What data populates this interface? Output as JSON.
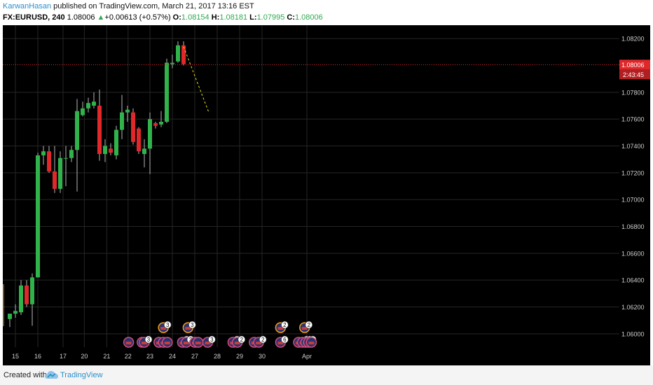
{
  "header": {
    "author": "KarwanHasan",
    "published": "published on TradingView.com, March 21, 2017 13:16 EST",
    "symbol": "FX:EURUSD, 240",
    "last": "1.08006",
    "change_arrow": "▲",
    "change": "+0.00613 (+0.57%)",
    "o_label": "O:",
    "o_value": "1.08154",
    "h_label": "H:",
    "h_value": "1.08181",
    "l_label": "L:",
    "l_value": "1.07995",
    "c_label": "C:",
    "c_value": "1.08006"
  },
  "footer": {
    "created_with": "Created with",
    "brand": "TradingView"
  },
  "colors": {
    "background": "#000000",
    "up": "#2fb34a",
    "down": "#e0282b",
    "grid": "#262626",
    "price_line": "#e0282b",
    "trend_line": "#e8e51c",
    "event_ring": "#ffffff",
    "event_ring_alt": "#f0a020"
  },
  "chart_data": {
    "type": "candlestick",
    "ylim": [
      1.059,
      1.083
    ],
    "y_ticks": [
      "1.08200",
      "1.07800",
      "1.07600",
      "1.07400",
      "1.07200",
      "1.07000",
      "1.06800",
      "1.06600",
      "1.06400",
      "1.06200",
      "1.06000"
    ],
    "x_ticks": [
      "15",
      "16",
      "17",
      "20",
      "21",
      "22",
      "23",
      "24",
      "27",
      "28",
      "29",
      "30",
      "Apr"
    ],
    "x_tick_slots": [
      1,
      5,
      9.5,
      13.3,
      17.3,
      21.1,
      25,
      29,
      33,
      37,
      41,
      45,
      53
    ],
    "current_price": {
      "label": "1.08006",
      "value": 1.08006,
      "countdown": "2:43:45"
    },
    "candles": [
      {
        "o": 1.0611,
        "h": 1.0615,
        "l": 1.0605,
        "c": 1.0615
      },
      {
        "o": 1.0615,
        "h": 1.0622,
        "l": 1.0612,
        "c": 1.0617
      },
      {
        "o": 1.0616,
        "h": 1.064,
        "l": 1.0614,
        "c": 1.0636
      },
      {
        "o": 1.0636,
        "h": 1.064,
        "l": 1.062,
        "c": 1.0622
      },
      {
        "o": 1.0622,
        "h": 1.0645,
        "l": 1.0606,
        "c": 1.0642
      },
      {
        "o": 1.0642,
        "h": 1.0735,
        "l": 1.0642,
        "c": 1.0733
      },
      {
        "o": 1.0733,
        "h": 1.074,
        "l": 1.0726,
        "c": 1.0736
      },
      {
        "o": 1.0736,
        "h": 1.074,
        "l": 1.072,
        "c": 1.0721
      },
      {
        "o": 1.0721,
        "h": 1.074,
        "l": 1.0705,
        "c": 1.0708
      },
      {
        "o": 1.0708,
        "h": 1.0736,
        "l": 1.0705,
        "c": 1.0731
      },
      {
        "o": 1.0731,
        "h": 1.074,
        "l": 1.071,
        "c": 1.0731
      },
      {
        "o": 1.0731,
        "h": 1.074,
        "l": 1.0728,
        "c": 1.0737
      },
      {
        "o": 1.0737,
        "h": 1.0775,
        "l": 1.0706,
        "c": 1.0766
      },
      {
        "o": 1.0763,
        "h": 1.0773,
        "l": 1.0762,
        "c": 1.0768
      },
      {
        "o": 1.0768,
        "h": 1.0776,
        "l": 1.0765,
        "c": 1.0772
      },
      {
        "o": 1.077,
        "h": 1.078,
        "l": 1.0768,
        "c": 1.0773
      },
      {
        "o": 1.077,
        "h": 1.0782,
        "l": 1.0729,
        "c": 1.0734
      },
      {
        "o": 1.0734,
        "h": 1.0745,
        "l": 1.0728,
        "c": 1.074
      },
      {
        "o": 1.0738,
        "h": 1.0742,
        "l": 1.0733,
        "c": 1.0735
      },
      {
        "o": 1.0733,
        "h": 1.0755,
        "l": 1.073,
        "c": 1.0752
      },
      {
        "o": 1.0752,
        "h": 1.0778,
        "l": 1.0745,
        "c": 1.0765
      },
      {
        "o": 1.0765,
        "h": 1.077,
        "l": 1.0758,
        "c": 1.0767
      },
      {
        "o": 1.0765,
        "h": 1.0768,
        "l": 1.0741,
        "c": 1.0743
      },
      {
        "o": 1.0753,
        "h": 1.0754,
        "l": 1.0734,
        "c": 1.0736
      },
      {
        "o": 1.0734,
        "h": 1.0745,
        "l": 1.0724,
        "c": 1.0738
      },
      {
        "o": 1.0738,
        "h": 1.0765,
        "l": 1.0719,
        "c": 1.076
      },
      {
        "o": 1.0757,
        "h": 1.0758,
        "l": 1.0753,
        "c": 1.0755
      },
      {
        "o": 1.0756,
        "h": 1.0766,
        "l": 1.0754,
        "c": 1.0758
      },
      {
        "o": 1.0758,
        "h": 1.0805,
        "l": 1.0757,
        "c": 1.0802
      },
      {
        "o": 1.0801,
        "h": 1.0808,
        "l": 1.0798,
        "c": 1.0802
      },
      {
        "o": 1.0803,
        "h": 1.0818,
        "l": 1.0802,
        "c": 1.0815
      },
      {
        "o": 1.0815,
        "h": 1.0818,
        "l": 1.08,
        "c": 1.0801
      }
    ],
    "trend_line": {
      "from": {
        "slot": 31,
        "y": 1.0814
      },
      "to": {
        "slot": 35.5,
        "y": 1.0765
      }
    },
    "events": [
      {
        "slot": 21.2,
        "row": 0,
        "badge": ""
      },
      {
        "slot": 23.6,
        "row": 0,
        "badge": ""
      },
      {
        "slot": 24.0,
        "row": 0,
        "badge": "3"
      },
      {
        "slot": 26.6,
        "row": 0,
        "badge": ""
      },
      {
        "slot": 27.4,
        "row": 0,
        "badge": ""
      },
      {
        "slot": 28.1,
        "row": 0,
        "badge": ""
      },
      {
        "slot": 27.4,
        "row": 1,
        "badge": "3"
      },
      {
        "slot": 30.8,
        "row": 0,
        "badge": "4"
      },
      {
        "slot": 31.5,
        "row": 0,
        "badge": "2"
      },
      {
        "slot": 31.8,
        "row": 1,
        "badge": "3"
      },
      {
        "slot": 33.0,
        "row": 0,
        "badge": ""
      },
      {
        "slot": 33.6,
        "row": 0,
        "badge": ""
      },
      {
        "slot": 35.3,
        "row": 0,
        "badge": "3"
      },
      {
        "slot": 39.8,
        "row": 0,
        "badge": "2"
      },
      {
        "slot": 40.6,
        "row": 0,
        "badge": "2"
      },
      {
        "slot": 43.6,
        "row": 0,
        "badge": ""
      },
      {
        "slot": 44.4,
        "row": 0,
        "badge": "2"
      },
      {
        "slot": 48.3,
        "row": 0,
        "badge": "6"
      },
      {
        "slot": 48.3,
        "row": 1,
        "badge": "2"
      },
      {
        "slot": 51.5,
        "row": 0,
        "badge": ""
      },
      {
        "slot": 52.2,
        "row": 0,
        "badge": "2"
      },
      {
        "slot": 52.8,
        "row": 0,
        "badge": "6"
      },
      {
        "slot": 53.3,
        "row": 0,
        "badge": "3"
      },
      {
        "slot": 53.8,
        "row": 0,
        "badge": ""
      },
      {
        "slot": 52.6,
        "row": 1,
        "badge": "2"
      }
    ]
  }
}
